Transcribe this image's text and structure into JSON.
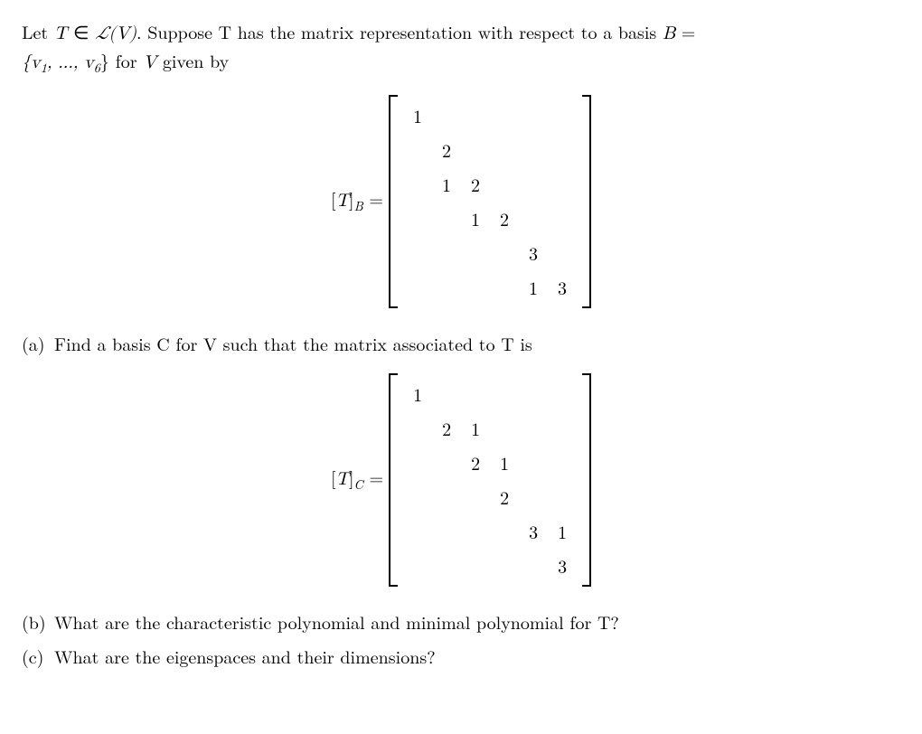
{
  "preamble_line1_before": "Let ",
  "preamble_T": "T",
  "preamble_in": " ∈ ",
  "preamble_LV": "ℒ(V)",
  "preamble_line1_after": ". Suppose T has the matrix representation with respect to a basis ",
  "preamble_B": "B",
  "preamble_eq": " =",
  "preamble_line2_set": "{v",
  "preamble_sub1": "1",
  "preamble_dots": ", ..., v",
  "preamble_sub6": "6",
  "preamble_line2_after": "} for ",
  "preamble_V": "V",
  "preamble_given": " given by",
  "matrixB": {
    "lhs_open": "[",
    "lhs_T": "T",
    "lhs_close": "]",
    "lhs_sub": "B",
    "lhs_eq": " =",
    "rows": 6,
    "cols": 6,
    "cells": {
      "0_0": "1",
      "1_1": "2",
      "2_1": "1",
      "2_2": "2",
      "3_2": "1",
      "3_3": "2",
      "4_4": "3",
      "5_4": "1",
      "5_5": "3"
    }
  },
  "part_a_label": "(a)",
  "part_a_text": "Find a basis C for V such that the matrix associated to T is",
  "matrixC": {
    "lhs_open": "[",
    "lhs_T": "T",
    "lhs_close": "]",
    "lhs_sub": "C",
    "lhs_eq": " =",
    "rows": 6,
    "cols": 6,
    "cells": {
      "0_0": "1",
      "1_1": "2",
      "1_2": "1",
      "2_2": "2",
      "2_3": "1",
      "3_3": "2",
      "4_4": "3",
      "4_5": "1",
      "5_5": "3"
    }
  },
  "part_b_label": "(b)",
  "part_b_text": "What are the characteristic polynomial and minimal polynomial for T?",
  "part_c_label": "(c)",
  "part_c_text": "What are the eigenspaces and their dimensions?"
}
